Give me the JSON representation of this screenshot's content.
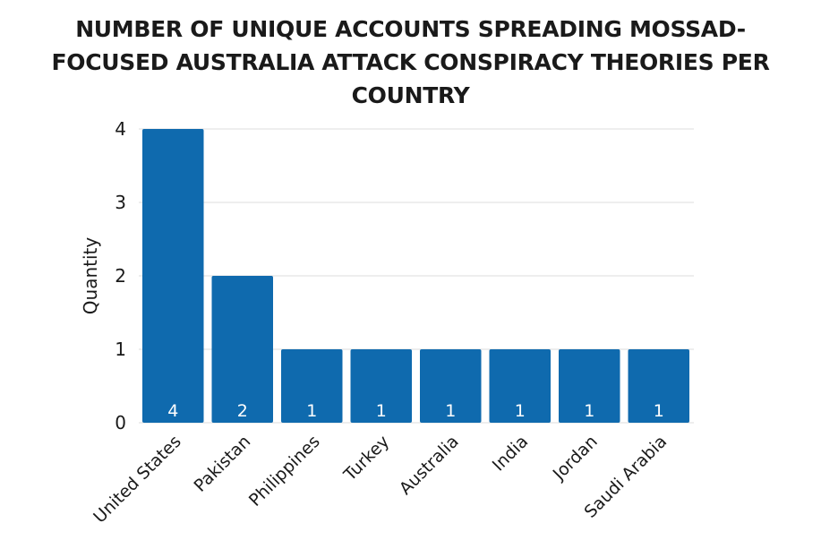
{
  "chart_data": {
    "type": "bar",
    "title": "NUMBER OF UNIQUE ACCOUNTS SPREADING MOSSAD-FOCUSED AUSTRALIA ATTACK CONSPIRACY THEORIES PER COUNTRY",
    "xlabel": "",
    "ylabel": "Quantity",
    "categories": [
      "United States",
      "Pakistan",
      "Philippines",
      "Turkey",
      "Australia",
      "India",
      "Jordan",
      "Saudi Arabia"
    ],
    "values": [
      4,
      2,
      1,
      1,
      1,
      1,
      1,
      1
    ],
    "ylim": [
      0,
      4
    ],
    "yticks": [
      0,
      1,
      2,
      3,
      4
    ],
    "grid": true,
    "data_labels": true,
    "bar_color": "#0f6aae",
    "grid_color": "#dcdcdc"
  }
}
